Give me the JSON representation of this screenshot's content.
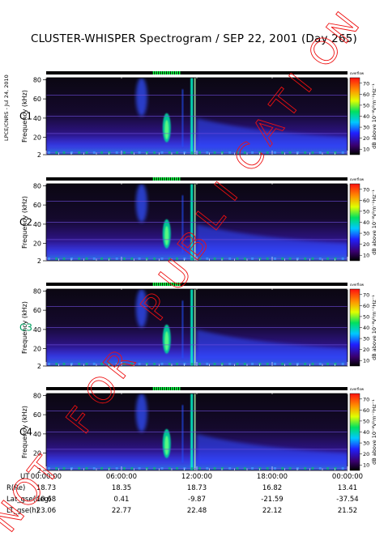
{
  "title": "CLUSTER-WHISPER Spectrogram / SEP 22, 2001 (Day 265)",
  "side_label": "LPCE/CNRS - Jul 24, 2010",
  "watermark": "NOT FOR PUBLICATION",
  "chart_data": {
    "type": "heatmap",
    "panels": [
      {
        "name": "C1",
        "name_color": "#000000"
      },
      {
        "name": "C2",
        "name_color": "#000000"
      },
      {
        "name": "C3",
        "name_color": "#00a060"
      },
      {
        "name": "C4",
        "name_color": "#000000"
      }
    ],
    "ylabel": "Frequency (kHz)",
    "yticks": [
      2,
      20,
      40,
      60,
      80
    ],
    "ylim": [
      2,
      82
    ],
    "colorbar": {
      "label": "dB above 10⁻⁸V²m⁻²Hz⁻¹",
      "corner_label": "overflow",
      "ticks": [
        10,
        20,
        30,
        40,
        50,
        60,
        70
      ],
      "range": [
        5,
        75
      ]
    },
    "x_tick_labels": [
      "00:00:00",
      "06:00:00",
      "12:00:00",
      "18:00:00",
      "00:00:00"
    ],
    "x_hours": [
      0,
      6,
      12,
      18,
      24
    ],
    "ephemeris_rows": [
      {
        "label": "UT",
        "values": [
          "00:00:00",
          "06:00:00",
          "12:00:00",
          "18:00:00",
          "00:00:00"
        ]
      },
      {
        "label": "R(Re)",
        "values": [
          "18.73",
          "18.35",
          "18.73",
          "16.82",
          "13.41"
        ]
      },
      {
        "label": "Lat_gse(deg)",
        "values": [
          "10.68",
          "0.41",
          "-9.87",
          "-21.59",
          "-37.54"
        ]
      },
      {
        "label": "LT_gse(h)",
        "values": [
          "23.06",
          "22.77",
          "22.48",
          "22.12",
          "21.52"
        ]
      }
    ]
  }
}
